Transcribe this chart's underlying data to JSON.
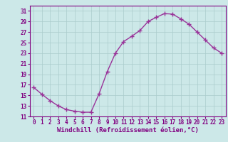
{
  "xlabel": "Windchill (Refroidissement éolien,°C)",
  "x_values": [
    0,
    1,
    2,
    3,
    4,
    5,
    6,
    7,
    8,
    9,
    10,
    11,
    12,
    13,
    14,
    15,
    16,
    17,
    18,
    19,
    20,
    21,
    22,
    23
  ],
  "y_values": [
    16.5,
    15.2,
    14.0,
    13.0,
    12.3,
    12.0,
    11.8,
    11.8,
    15.3,
    19.5,
    23.0,
    25.2,
    26.2,
    27.3,
    29.0,
    29.8,
    30.5,
    30.4,
    29.5,
    28.5,
    27.0,
    25.5,
    24.0,
    23.0
  ],
  "line_color": "#993399",
  "marker": "+",
  "marker_size": 4,
  "line_width": 1.0,
  "bg_color": "#cce8e8",
  "grid_color": "#aacccc",
  "ylim_min": 11,
  "ylim_max": 32,
  "ytick_min": 11,
  "ytick_max": 31,
  "ytick_step": 2,
  "xlim_min": -0.5,
  "xlim_max": 23.5,
  "tick_label_color": "#800080",
  "tick_label_fontsize": 5.5,
  "xlabel_fontsize": 6.5,
  "xlabel_color": "#800080",
  "xlabel_weight": "bold",
  "markeredgewidth": 1.0
}
